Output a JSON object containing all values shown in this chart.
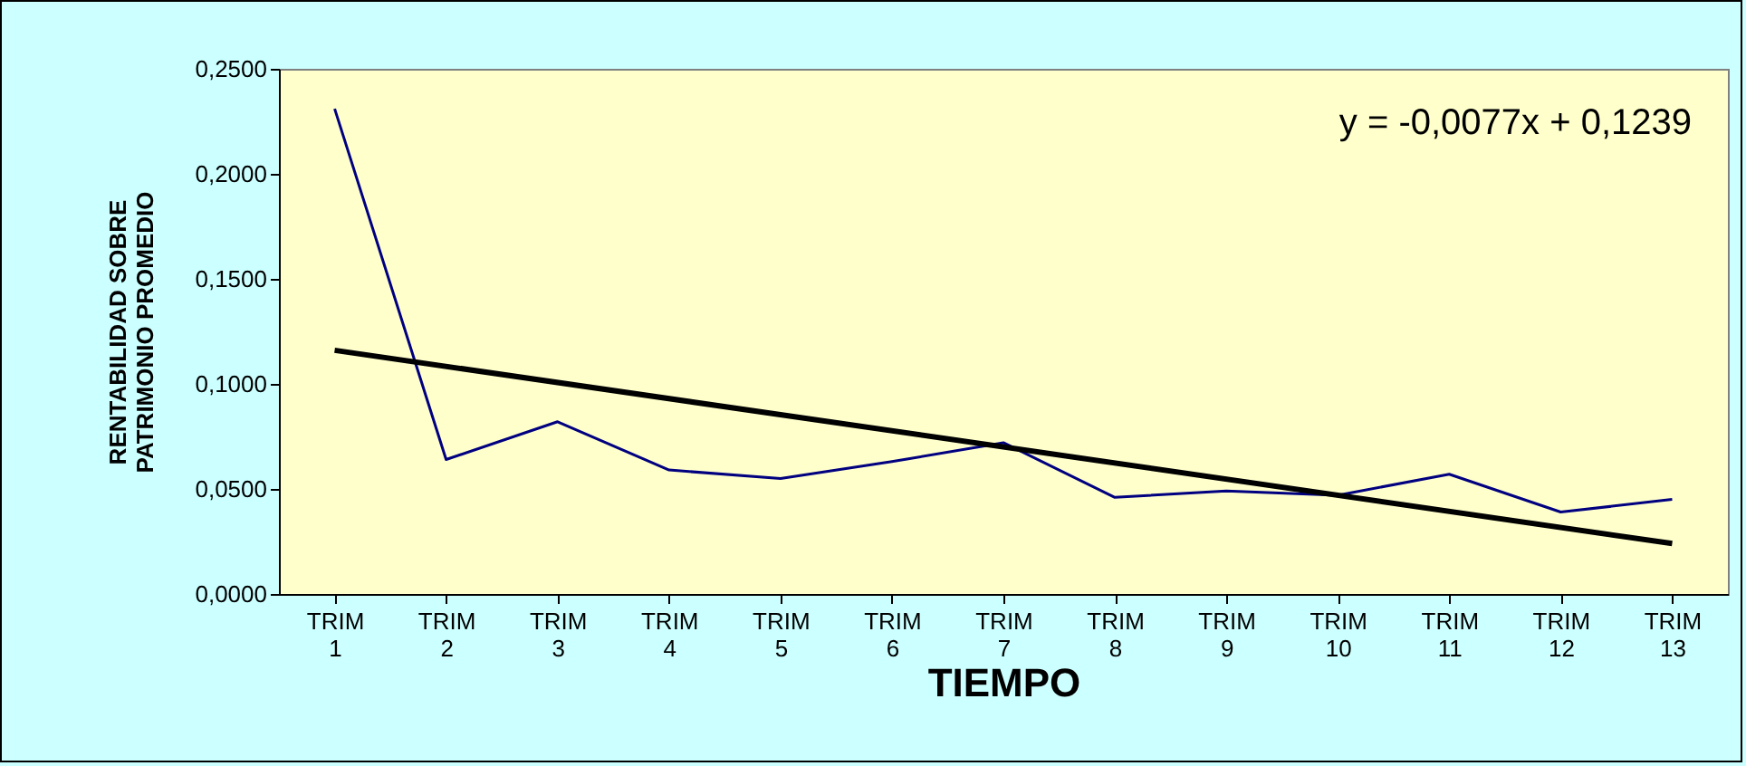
{
  "chart_data": {
    "type": "line",
    "xlabel": "TIEMPO",
    "ylabel": "RENTABILIDAD SOBRE PATRIMONIO PROMEDIO",
    "categories": [
      "TRIM 1",
      "TRIM 2",
      "TRIM 3",
      "TRIM 4",
      "TRIM 5",
      "TRIM 6",
      "TRIM 7",
      "TRIM 8",
      "TRIM 9",
      "TRIM 10",
      "TRIM 11",
      "TRIM 12",
      "TRIM 13"
    ],
    "series": [
      {
        "color": "#000080",
        "values": [
          0.231,
          0.064,
          0.082,
          0.059,
          0.055,
          0.063,
          0.072,
          0.046,
          0.049,
          0.047,
          0.057,
          0.039,
          0.045
        ]
      },
      {
        "type": "line",
        "color": "#000000",
        "x": [
          "TRIM 1",
          "TRIM 13"
        ],
        "values": [
          0.116,
          0.024
        ]
      }
    ],
    "ylim": [
      0,
      0.25
    ],
    "yticks": [
      {
        "value": 0,
        "label": "0,0000"
      },
      {
        "value": 0.05,
        "label": "0,0500"
      },
      {
        "value": 0.1,
        "label": "0,1000"
      },
      {
        "value": 0.15,
        "label": "0,1500"
      },
      {
        "value": 0.2,
        "label": "0,2000"
      },
      {
        "value": 0.25,
        "label": "0,2500"
      }
    ],
    "annotations": [
      "y = -0,0077x + 0,1239"
    ],
    "grid": false,
    "marker": "none",
    "line_style": "solid"
  }
}
